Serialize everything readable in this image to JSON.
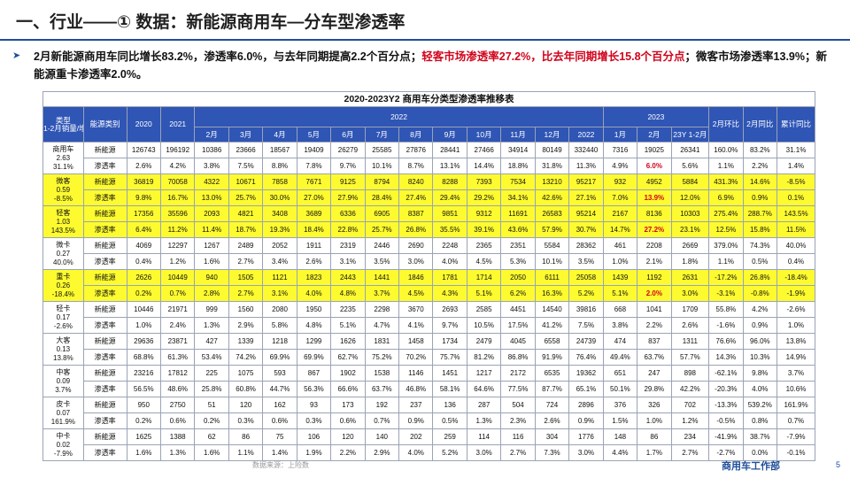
{
  "page_title": "一、行业——① 数据：新能源商用车—分车型渗透率",
  "summary": {
    "part1": "2月新能源商用车同比增长83.2%，渗透率6.0%，与去年同期提高2.2个百分点；",
    "part2_red": "轻客市场渗透率27.2%，比去年同期增长15.8个百分点",
    "part3": "；微客市场渗透率13.9%；新能源重卡渗透率2.0%。"
  },
  "table": {
    "caption": "2020-2023Y2 商用车分类型渗透率推移表",
    "header": {
      "type_label": "类型\n1-2月销量/增速",
      "energy_label": "能源类别",
      "y2020": "2020",
      "y2021": "2021",
      "y2022": "2022",
      "y2023": "2023",
      "mom": "2月环比",
      "yoy": "2月同比",
      "cum_yoy": "累计同比",
      "months_2022": [
        "2月",
        "3月",
        "4月",
        "5月",
        "6月",
        "7月",
        "8月",
        "9月",
        "10月",
        "11月",
        "12月",
        "2022"
      ],
      "months_2023": [
        "1月",
        "2月",
        "23Y 1-2月"
      ]
    },
    "groups": [
      {
        "name": "商用车",
        "volume": "2.63",
        "growth": "31.1%",
        "highlight": false,
        "rows": [
          {
            "energy": "新能源",
            "cells": [
              "126743",
              "196192",
              "10386",
              "23666",
              "18567",
              "19409",
              "26279",
              "25585",
              "27876",
              "28441",
              "27466",
              "34914",
              "80149",
              "332440",
              "7316",
              "19025",
              "26341",
              "160.0%",
              "83.2%",
              "31.1%"
            ]
          },
          {
            "energy": "渗透率",
            "cells": [
              "2.6%",
              "4.2%",
              "3.8%",
              "7.5%",
              "8.8%",
              "7.8%",
              "9.7%",
              "10.1%",
              "8.7%",
              "13.1%",
              "14.4%",
              "18.8%",
              "31.8%",
              "11.3%",
              "4.9%",
              "6.0%",
              "5.6%",
              "1.1%",
              "2.2%",
              "1.4%"
            ],
            "red": [
              15
            ]
          }
        ]
      },
      {
        "name": "微客",
        "volume": "0.59",
        "growth": "-8.5%",
        "highlight": true,
        "rows": [
          {
            "energy": "新能源",
            "cells": [
              "36819",
              "70058",
              "4322",
              "10671",
              "7858",
              "7671",
              "9125",
              "8794",
              "8240",
              "8288",
              "7393",
              "7534",
              "13210",
              "95217",
              "932",
              "4952",
              "5884",
              "431.3%",
              "14.6%",
              "-8.5%"
            ]
          },
          {
            "energy": "渗透率",
            "cells": [
              "9.8%",
              "16.7%",
              "13.0%",
              "25.7%",
              "30.0%",
              "27.0%",
              "27.9%",
              "28.4%",
              "27.4%",
              "29.4%",
              "29.2%",
              "34.1%",
              "42.6%",
              "27.1%",
              "7.0%",
              "13.9%",
              "12.0%",
              "6.9%",
              "0.9%",
              "0.1%"
            ],
            "red": [
              15
            ]
          }
        ]
      },
      {
        "name": "轻客",
        "volume": "1.03",
        "growth": "143.5%",
        "highlight": true,
        "rows": [
          {
            "energy": "新能源",
            "cells": [
              "17356",
              "35596",
              "2093",
              "4821",
              "3408",
              "3689",
              "6336",
              "6905",
              "8387",
              "9851",
              "9312",
              "11691",
              "26583",
              "95214",
              "2167",
              "8136",
              "10303",
              "275.4%",
              "288.7%",
              "143.5%"
            ]
          },
          {
            "energy": "渗透率",
            "cells": [
              "6.4%",
              "11.2%",
              "11.4%",
              "18.7%",
              "19.3%",
              "18.4%",
              "22.8%",
              "25.7%",
              "26.8%",
              "35.5%",
              "39.1%",
              "43.6%",
              "57.9%",
              "30.7%",
              "14.7%",
              "27.2%",
              "23.1%",
              "12.5%",
              "15.8%",
              "11.5%"
            ],
            "red": [
              15
            ]
          }
        ]
      },
      {
        "name": "微卡",
        "volume": "0.27",
        "growth": "40.0%",
        "highlight": false,
        "rows": [
          {
            "energy": "新能源",
            "cells": [
              "4069",
              "12297",
              "1267",
              "2489",
              "2052",
              "1911",
              "2319",
              "2446",
              "2690",
              "2248",
              "2365",
              "2351",
              "5584",
              "28362",
              "461",
              "2208",
              "2669",
              "379.0%",
              "74.3%",
              "40.0%"
            ]
          },
          {
            "energy": "渗透率",
            "cells": [
              "0.4%",
              "1.2%",
              "1.6%",
              "2.7%",
              "3.4%",
              "2.6%",
              "3.1%",
              "3.5%",
              "3.0%",
              "4.0%",
              "4.5%",
              "5.3%",
              "10.1%",
              "3.5%",
              "1.0%",
              "2.1%",
              "1.8%",
              "1.1%",
              "0.5%",
              "0.4%"
            ],
            "red": []
          }
        ]
      },
      {
        "name": "重卡",
        "volume": "0.26",
        "growth": "-18.4%",
        "highlight": true,
        "rows": [
          {
            "energy": "新能源",
            "cells": [
              "2626",
              "10449",
              "940",
              "1505",
              "1121",
              "1823",
              "2443",
              "1441",
              "1846",
              "1781",
              "1714",
              "2050",
              "6111",
              "25058",
              "1439",
              "1192",
              "2631",
              "-17.2%",
              "26.8%",
              "-18.4%"
            ]
          },
          {
            "energy": "渗透率",
            "cells": [
              "0.2%",
              "0.7%",
              "2.8%",
              "2.7%",
              "3.1%",
              "4.0%",
              "4.8%",
              "3.7%",
              "4.5%",
              "4.3%",
              "5.1%",
              "6.2%",
              "16.3%",
              "5.2%",
              "5.1%",
              "2.0%",
              "3.0%",
              "-3.1%",
              "-0.8%",
              "-1.9%"
            ],
            "red": [
              15
            ]
          }
        ]
      },
      {
        "name": "轻卡",
        "volume": "0.17",
        "growth": "-2.6%",
        "highlight": false,
        "rows": [
          {
            "energy": "新能源",
            "cells": [
              "10446",
              "21971",
              "999",
              "1560",
              "2080",
              "1950",
              "2235",
              "2298",
              "3670",
              "2693",
              "2585",
              "4451",
              "14540",
              "39816",
              "668",
              "1041",
              "1709",
              "55.8%",
              "4.2%",
              "-2.6%"
            ]
          },
          {
            "energy": "渗透率",
            "cells": [
              "1.0%",
              "2.4%",
              "1.3%",
              "2.9%",
              "5.8%",
              "4.8%",
              "5.1%",
              "4.7%",
              "4.1%",
              "9.7%",
              "10.5%",
              "17.5%",
              "41.2%",
              "7.5%",
              "3.8%",
              "2.2%",
              "2.6%",
              "-1.6%",
              "0.9%",
              "1.0%"
            ],
            "red": []
          }
        ]
      },
      {
        "name": "大客",
        "volume": "0.13",
        "growth": "13.8%",
        "highlight": false,
        "rows": [
          {
            "energy": "新能源",
            "cells": [
              "29636",
              "23871",
              "427",
              "1339",
              "1218",
              "1299",
              "1626",
              "1831",
              "1458",
              "1734",
              "2479",
              "4045",
              "6558",
              "24739",
              "474",
              "837",
              "1311",
              "76.6%",
              "96.0%",
              "13.8%"
            ]
          },
          {
            "energy": "渗透率",
            "cells": [
              "68.8%",
              "61.3%",
              "53.4%",
              "74.2%",
              "69.9%",
              "69.9%",
              "62.7%",
              "75.2%",
              "70.2%",
              "75.7%",
              "81.2%",
              "86.8%",
              "91.9%",
              "76.4%",
              "49.4%",
              "63.7%",
              "57.7%",
              "14.3%",
              "10.3%",
              "14.9%"
            ],
            "red": []
          }
        ]
      },
      {
        "name": "中客",
        "volume": "0.09",
        "growth": "3.7%",
        "highlight": false,
        "rows": [
          {
            "energy": "新能源",
            "cells": [
              "23216",
              "17812",
              "225",
              "1075",
              "593",
              "867",
              "1902",
              "1538",
              "1146",
              "1451",
              "1217",
              "2172",
              "6535",
              "19362",
              "651",
              "247",
              "898",
              "-62.1%",
              "9.8%",
              "3.7%"
            ]
          },
          {
            "energy": "渗透率",
            "cells": [
              "56.5%",
              "48.6%",
              "25.8%",
              "60.8%",
              "44.7%",
              "56.3%",
              "66.6%",
              "63.7%",
              "46.8%",
              "58.1%",
              "64.6%",
              "77.5%",
              "87.7%",
              "65.1%",
              "50.1%",
              "29.8%",
              "42.2%",
              "-20.3%",
              "4.0%",
              "10.6%"
            ],
            "red": []
          }
        ]
      },
      {
        "name": "皮卡",
        "volume": "0.07",
        "growth": "161.9%",
        "highlight": false,
        "rows": [
          {
            "energy": "新能源",
            "cells": [
              "950",
              "2750",
              "51",
              "120",
              "162",
              "93",
              "173",
              "192",
              "237",
              "136",
              "287",
              "504",
              "724",
              "2896",
              "376",
              "326",
              "702",
              "-13.3%",
              "539.2%",
              "161.9%"
            ]
          },
          {
            "energy": "渗透率",
            "cells": [
              "0.2%",
              "0.6%",
              "0.2%",
              "0.3%",
              "0.6%",
              "0.3%",
              "0.6%",
              "0.7%",
              "0.9%",
              "0.5%",
              "1.3%",
              "2.3%",
              "2.6%",
              "0.9%",
              "1.5%",
              "1.0%",
              "1.2%",
              "-0.5%",
              "0.8%",
              "0.7%"
            ],
            "red": []
          }
        ]
      },
      {
        "name": "中卡",
        "volume": "0.02",
        "growth": "-7.9%",
        "highlight": false,
        "rows": [
          {
            "energy": "新能源",
            "cells": [
              "1625",
              "1388",
              "62",
              "86",
              "75",
              "106",
              "120",
              "140",
              "202",
              "259",
              "114",
              "116",
              "304",
              "1776",
              "148",
              "86",
              "234",
              "-41.9%",
              "38.7%",
              "-7.9%"
            ]
          },
          {
            "energy": "渗透率",
            "cells": [
              "1.6%",
              "1.3%",
              "1.6%",
              "1.1%",
              "1.4%",
              "1.9%",
              "2.2%",
              "2.9%",
              "4.0%",
              "5.2%",
              "3.0%",
              "2.7%",
              "7.3%",
              "3.0%",
              "4.4%",
              "1.7%",
              "2.7%",
              "-2.7%",
              "0.0%",
              "-0.1%"
            ],
            "red": []
          }
        ]
      }
    ]
  },
  "footer": {
    "source": "数据来源：上险数",
    "department": "商用车工作部",
    "page_number": "5"
  }
}
